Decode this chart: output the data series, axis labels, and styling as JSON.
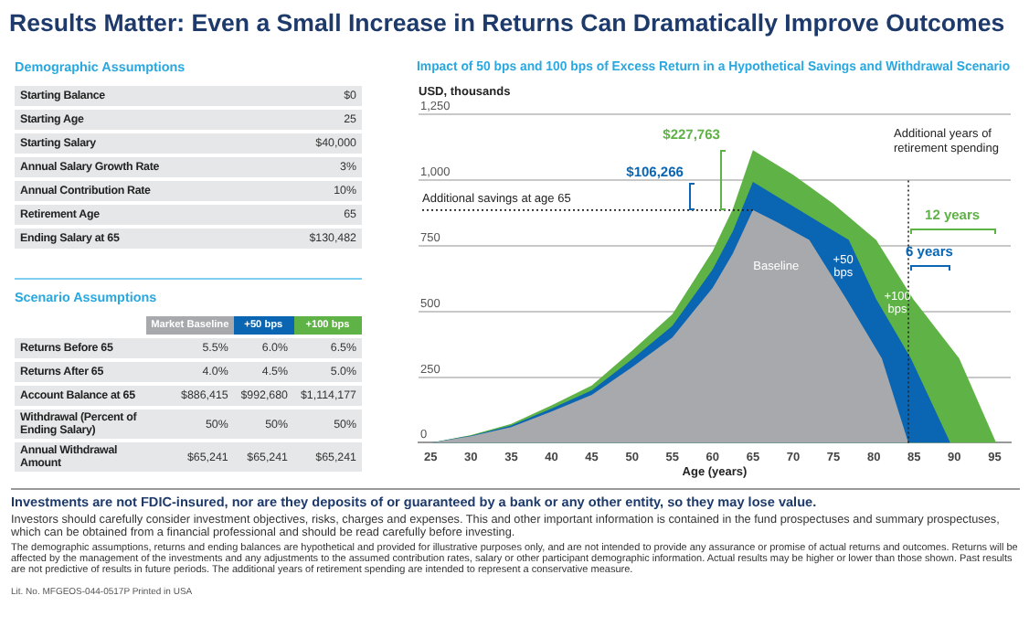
{
  "chart_data": [
    {
      "type": "other",
      "title": "Results Matter: Even a Small Increase in Returns Can Dramatically Improve Outcomes"
    },
    {
      "type": "other",
      "title": "Demographic Assumptions",
      "y_categories": [
        "Starting Balance",
        "Starting Age",
        "Starting Salary",
        "Annual Salary Growth Rate",
        "Annual Contribution Rate",
        "Retirement Age",
        "Ending Salary at 65"
      ],
      "cell_labels": [
        [
          "$0"
        ],
        [
          "25"
        ],
        [
          "$40,000"
        ],
        [
          "3%"
        ],
        [
          "10%"
        ],
        [
          "65"
        ],
        [
          "$130,482"
        ]
      ]
    },
    {
      "type": "other",
      "title": "Scenario Assumptions",
      "categories": [
        "Market Baseline",
        "+50 bps",
        "+100 bps"
      ],
      "colors": [
        "#a7a9ac",
        "#0a66b2",
        "#5fb246"
      ],
      "y_categories": [
        "Returns Before 65",
        "Returns After 65",
        "Account Balance at 65",
        "Withdrawal (Percent of Ending Salary)",
        "Annual Withdrawal Amount"
      ],
      "cell_labels": [
        [
          "5.5%",
          "6.0%",
          "6.5%"
        ],
        [
          "4.0%",
          "4.5%",
          "5.0%"
        ],
        [
          "$886,415",
          "$992,680",
          "$1,114,177"
        ],
        [
          "50%",
          "50%",
          "50%"
        ],
        [
          "$65,241",
          "$65,241",
          "$65,241"
        ]
      ]
    },
    {
      "type": "area",
      "title": "Impact of 50 bps and 100 bps of Excess Return in a Hypothetical Savings and Withdrawal Scenario",
      "ylabel": "USD, thousands",
      "xlabel": "Age (years)",
      "xlim": [
        23.5,
        97
      ],
      "xticks": [
        25,
        30,
        35,
        40,
        45,
        50,
        55,
        60,
        65,
        70,
        75,
        80,
        85,
        90,
        95
      ],
      "ylim": [
        0,
        1250
      ],
      "yticks": [
        0,
        250,
        500,
        750,
        {
          "value": 1000,
          "label": "1,000"
        },
        {
          "value": 1250,
          "label": "1,250"
        }
      ],
      "grid": "y",
      "series": [
        {
          "name": "Baseline",
          "color": "#a7a9ac",
          "x": [
            25,
            30,
            35,
            40,
            45,
            50,
            55,
            60,
            62.5,
            65,
            68,
            72,
            76.6,
            81,
            84.3
          ],
          "values": [
            0,
            25,
            60,
            119,
            182,
            288,
            401,
            590,
            720,
            886,
            840,
            772,
            547,
            322,
            0
          ]
        },
        {
          "name": "+50 bps",
          "color": "#0a66b2",
          "x": [
            25,
            30,
            35,
            40,
            45,
            50,
            55,
            60,
            62.5,
            65,
            70,
            76.9,
            80.3,
            84.6,
            89.5
          ],
          "values": [
            0,
            27,
            66,
            130,
            200,
            318,
            445,
            660,
            805,
            993,
            900,
            772,
            547,
            322,
            0
          ]
        },
        {
          "name": "+100 bps",
          "color": "#5fb246",
          "x": [
            25,
            30,
            35,
            40,
            45,
            50,
            55,
            60,
            62.5,
            65,
            70,
            75,
            80.3,
            84.9,
            90.6,
            95.2
          ],
          "values": [
            0,
            29,
            72,
            142,
            218,
            350,
            490,
            730,
            890,
            1114,
            1020,
            910,
            772,
            547,
            322,
            0
          ]
        }
      ],
      "ref_lines": [
        {
          "axis": "x",
          "value": 84.3,
          "color": "#222222",
          "line_style": "dotted"
        }
      ],
      "annotations": [
        "$227,763",
        "$106,266",
        "Additional savings at age 65",
        "Additional years of retirement spending",
        "12 years",
        "6 years"
      ]
    },
    {
      "type": "other",
      "annotations": [
        "Investments are not FDIC-insured, nor are they deposits of or guaranteed by a bank or any other entity, so they may lose value.",
        "Investors should carefully consider investment objectives, risks, charges and expenses. This and other important information is contained in the fund prospectuses and summary prospectuses, which can be obtained from a financial professional and should be read carefully before investing.",
        "The demographic assumptions, returns and ending balances are hypothetical and provided for illustrative purposes only, and are not intended to provide any assurance or promise of actual returns and outcomes. Returns will be affected by the management of the investments and any adjustments to the assumed contribution rates, salary or other participant demographic information. Actual results may be higher or lower than those shown. Past results are not predictive of results in future periods. The additional years of retirement spending are intended to represent a conservative measure.",
        "Lit. No. MFGEOS-044-0517P   Printed in USA"
      ]
    }
  ]
}
